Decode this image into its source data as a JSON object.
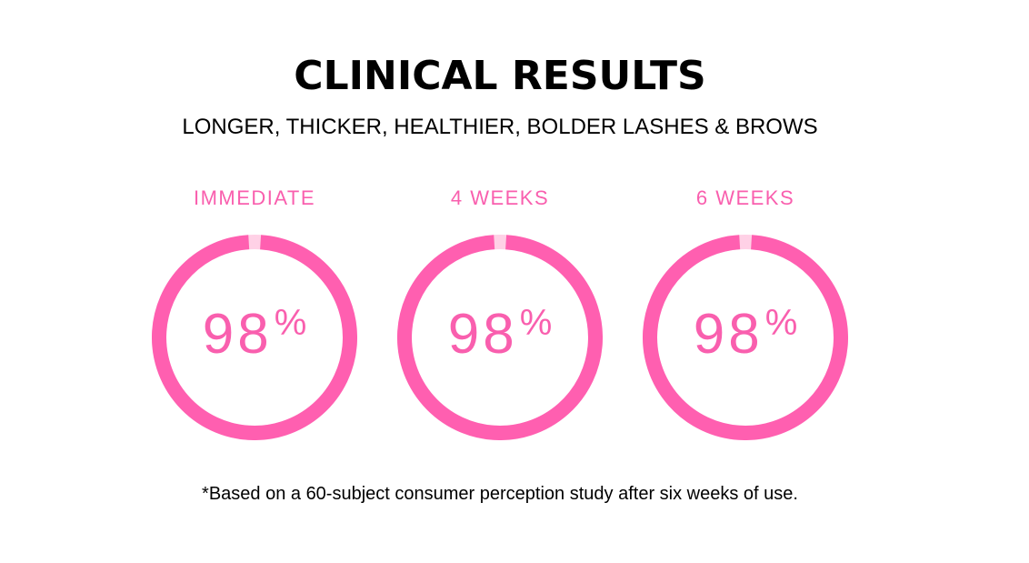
{
  "header": {
    "title": "CLINICAL RESULTS",
    "subtitle": "LONGER, THICKER, HEALTHIER, BOLDER LASHES & BROWS"
  },
  "stats": [
    {
      "label": "IMMEDIATE",
      "value": "98",
      "unit": "%",
      "fraction": 0.98
    },
    {
      "label": "4 WEEKS",
      "value": "98",
      "unit": "%",
      "fraction": 0.98
    },
    {
      "label": "6 WEEKS",
      "value": "98",
      "unit": "%",
      "fraction": 0.98
    }
  ],
  "footnote": "*Based on a 60-subject consumer perception study after six weeks of use.",
  "colors": {
    "accent": "#ff5fb0",
    "track": "#ffd1e6",
    "text": "#000000"
  }
}
